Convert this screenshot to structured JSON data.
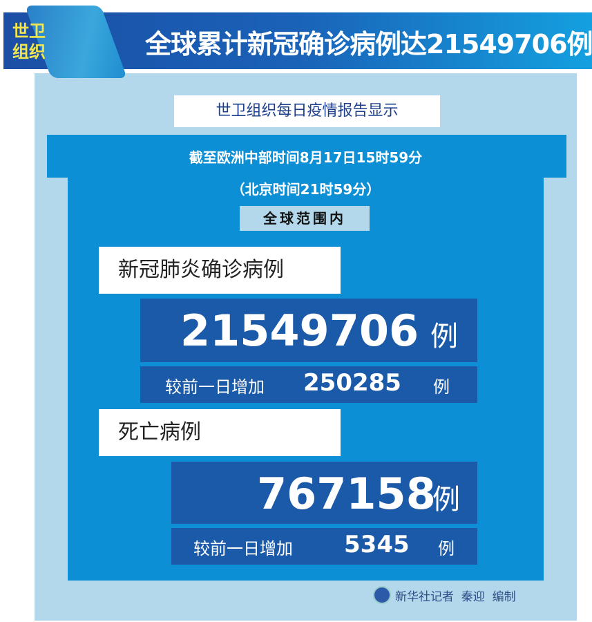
{
  "header": {
    "badge_line1": "世卫",
    "badge_line2": "组织",
    "title": "全球累计新冠确诊病例达21549706例"
  },
  "subtitle": "世卫组织每日疫情报告显示",
  "time_line1": "截至欧洲中部时间8月17日15时59分",
  "time_line2": "（北京时间21时59分）",
  "scope": "全球范围内",
  "cases": {
    "label": "新冠肺炎确诊病例",
    "total": "21549706",
    "unit": "例",
    "increase_label": "较前一日增加",
    "increase": "250285",
    "increase_unit": "例"
  },
  "deaths": {
    "label": "死亡病例",
    "total": "767158",
    "unit": "例",
    "increase_label": "较前一日增加",
    "increase": "5345",
    "increase_unit": "例"
  },
  "credit": "新华社记者  秦迎  编制",
  "colors": {
    "dark_blue": "#1b5aa8",
    "mid_blue": "#0c8fd4",
    "light_blue": "#b3d8ec",
    "badge_yellow": "#f2e64a"
  }
}
